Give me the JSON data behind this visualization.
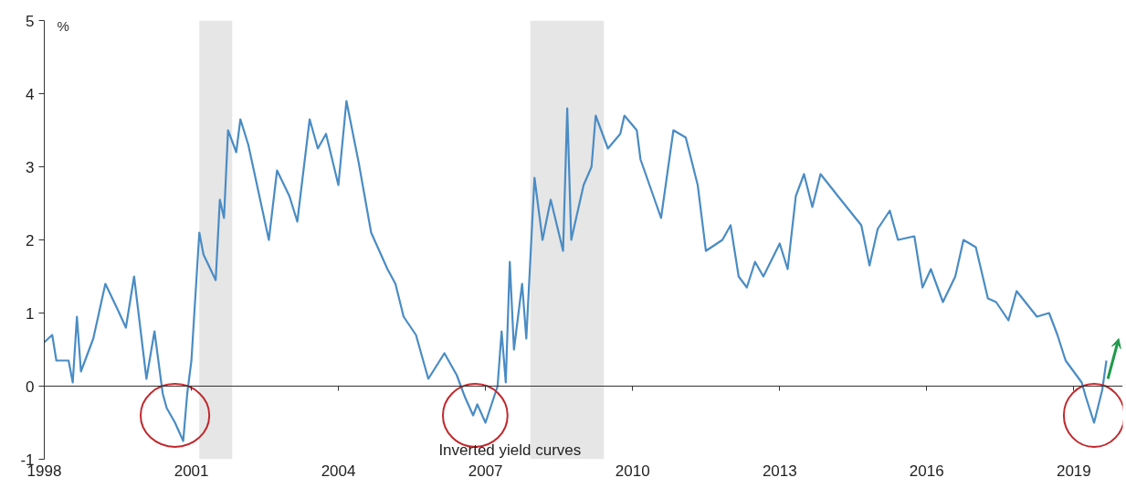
{
  "chart_data": {
    "type": "line",
    "ylabel": "%",
    "annotations": [
      "Inverted yield curves"
    ],
    "x": [
      "1998-01",
      "1998-03",
      "1998-04",
      "1998-07",
      "1998-08",
      "1998-09",
      "1998-10",
      "1999-01",
      "1999-04",
      "1999-07",
      "1999-09",
      "1999-11",
      "2000-02",
      "2000-04",
      "2000-06",
      "2000-07",
      "2000-09",
      "2000-11",
      "2000-12",
      "2001-01",
      "2001-03",
      "2001-04",
      "2001-07",
      "2001-08",
      "2001-09",
      "2001-10",
      "2001-12",
      "2002-01",
      "2002-03",
      "2002-08",
      "2002-10",
      "2003-01",
      "2003-03",
      "2003-06",
      "2003-08",
      "2003-10",
      "2004-01",
      "2004-03",
      "2004-06",
      "2004-09",
      "2005-01",
      "2005-03",
      "2005-05",
      "2005-08",
      "2005-11",
      "2006-03",
      "2006-06",
      "2006-08",
      "2006-10",
      "2006-11",
      "2007-01",
      "2007-04",
      "2007-05",
      "2007-06",
      "2007-07",
      "2007-08",
      "2007-10",
      "2007-11",
      "2008-01",
      "2008-03",
      "2008-05",
      "2008-08",
      "2008-09",
      "2008-10",
      "2009-01",
      "2009-03",
      "2009-04",
      "2009-07",
      "2009-10",
      "2009-11",
      "2010-02",
      "2010-03",
      "2010-08",
      "2010-11",
      "2011-02",
      "2011-05",
      "2011-07",
      "2011-11",
      "2012-01",
      "2012-03",
      "2012-05",
      "2012-07",
      "2012-09",
      "2013-01",
      "2013-03",
      "2013-05",
      "2013-07",
      "2013-09",
      "2013-11",
      "2014-04",
      "2014-09",
      "2014-11",
      "2015-01",
      "2015-04",
      "2015-06",
      "2015-10",
      "2015-12",
      "2016-02",
      "2016-05",
      "2016-08",
      "2016-10",
      "2017-01",
      "2017-04",
      "2017-06",
      "2017-09",
      "2017-11",
      "2018-04",
      "2018-07",
      "2018-09",
      "2018-11",
      "2019-03",
      "2019-04",
      "2019-06",
      "2019-08",
      "2019-09"
    ],
    "series": [
      {
        "color": "#4a8cc4",
        "values": [
          0.6,
          0.7,
          0.35,
          0.35,
          0.05,
          0.95,
          0.2,
          0.65,
          1.4,
          1.05,
          0.8,
          1.5,
          0.1,
          0.75,
          -0.1,
          -0.3,
          -0.5,
          -0.75,
          -0.1,
          0.35,
          2.1,
          1.8,
          1.45,
          2.55,
          2.3,
          3.5,
          3.2,
          3.65,
          3.3,
          2.0,
          2.95,
          2.6,
          2.25,
          3.65,
          3.25,
          3.45,
          2.75,
          3.9,
          3.05,
          2.1,
          1.6,
          1.4,
          0.95,
          0.7,
          0.1,
          0.45,
          0.15,
          -0.15,
          -0.4,
          -0.25,
          -0.5,
          0.0,
          0.75,
          0.05,
          1.7,
          0.5,
          1.4,
          0.65,
          2.85,
          2.0,
          2.55,
          1.85,
          3.8,
          2.0,
          2.75,
          3.0,
          3.7,
          3.25,
          3.45,
          3.7,
          3.5,
          3.1,
          2.3,
          3.5,
          3.4,
          2.75,
          1.85,
          2.0,
          2.2,
          1.5,
          1.35,
          1.7,
          1.5,
          1.95,
          1.6,
          2.6,
          2.9,
          2.45,
          2.9,
          2.55,
          2.2,
          1.65,
          2.15,
          2.4,
          2.0,
          2.05,
          1.35,
          1.6,
          1.15,
          1.5,
          2.0,
          1.9,
          1.2,
          1.15,
          0.9,
          1.3,
          0.95,
          1.0,
          0.7,
          0.35,
          0.05,
          -0.15,
          -0.5,
          -0.05,
          0.35
        ]
      }
    ],
    "xlim": [
      "1998-01",
      "2020-01"
    ],
    "xticks": [
      "1998",
      "2001",
      "2004",
      "2007",
      "2010",
      "2013",
      "2016",
      "2019"
    ],
    "ylim": [
      -1,
      5
    ],
    "yticks": [
      -1,
      0,
      1,
      2,
      3,
      4,
      5
    ],
    "bands": [
      {
        "axis": "x",
        "from": "2001-03",
        "to": "2001-11",
        "color": "#e6e6e6"
      },
      {
        "axis": "x",
        "from": "2007-12",
        "to": "2009-06",
        "color": "#e6e6e6"
      }
    ],
    "ref_lines": [
      {
        "axis": "y",
        "value": 0,
        "color": "#333333"
      }
    ],
    "line_style": "solid",
    "marker": "none"
  }
}
